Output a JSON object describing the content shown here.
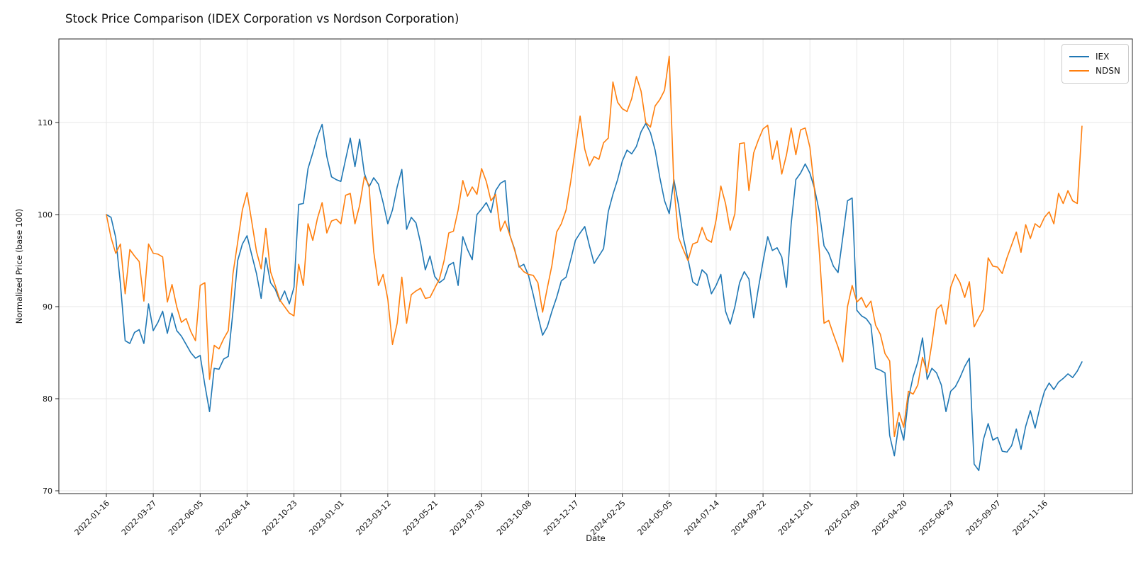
{
  "title": "Stock Price Comparison (IDEX Corporation vs Nordson Corporation)",
  "xlabel": "Date",
  "ylabel": "Normalized Price (base 100)",
  "colors": {
    "iex_line": "#1f77b4",
    "ndsn_line": "#ff7f0e",
    "grid": "#e7e7e7",
    "axis": "#262626",
    "text": "#111111"
  },
  "chart_data": {
    "type": "line",
    "title": "Stock Price Comparison (IDEX Corporation vs Nordson Corporation)",
    "xlabel": "Date",
    "ylabel": "Normalized Price (base 100)",
    "x_unit": "weeks since 2022-01-16 (weekly data points)",
    "x_tick_labels": [
      "2022-01-16",
      "2022-03-27",
      "2022-06-05",
      "2022-08-14",
      "2022-10-23",
      "2023-01-01",
      "2023-03-12",
      "2023-05-21",
      "2023-07-30",
      "2023-10-08",
      "2023-12-17",
      "2024-02-25",
      "2024-05-05",
      "2024-07-14",
      "2024-09-22",
      "2024-12-01",
      "2025-02-09",
      "2025-04-20",
      "2025-06-29",
      "2025-09-07",
      "2025-11-16"
    ],
    "x_tick_weeks": [
      0,
      10,
      20,
      30,
      40,
      50,
      60,
      70,
      80,
      90,
      100,
      110,
      120,
      130,
      140,
      150,
      160,
      170,
      180,
      190,
      200
    ],
    "y_ticks": [
      70,
      80,
      90,
      100,
      110
    ],
    "ylim": [
      69.6,
      119.5
    ],
    "grid": true,
    "legend_position": "upper right",
    "series": [
      {
        "name": "IEX",
        "color": "#1f77b4",
        "values": [
          100.0,
          99.7,
          97.5,
          92.5,
          86.3,
          86.0,
          87.2,
          87.5,
          86.0,
          90.3,
          87.4,
          88.3,
          89.5,
          87.1,
          89.3,
          87.4,
          86.8,
          85.9,
          85.0,
          84.4,
          84.7,
          81.5,
          78.6,
          83.3,
          83.2,
          84.3,
          84.6,
          89.5,
          95.0,
          96.8,
          97.7,
          95.6,
          93.6,
          90.9,
          95.3,
          92.6,
          91.9,
          90.6,
          91.7,
          90.3,
          92.1,
          101.1,
          101.2,
          105.0,
          106.7,
          108.5,
          109.8,
          106.3,
          104.1,
          103.8,
          103.6,
          106.0,
          108.3,
          105.2,
          108.2,
          104.5,
          103.0,
          104.0,
          103.3,
          101.3,
          99.0,
          100.5,
          103.0,
          104.9,
          98.4,
          99.7,
          99.1,
          96.9,
          94.0,
          95.5,
          93.3,
          92.6,
          93.0,
          94.5,
          94.8,
          92.3,
          97.6,
          96.2,
          95.1,
          100.0,
          100.6,
          101.3,
          100.2,
          102.6,
          103.4,
          103.7,
          97.8,
          96.3,
          94.3,
          94.6,
          93.4,
          91.3,
          89.0,
          86.9,
          87.8,
          89.5,
          91.0,
          92.8,
          93.2,
          95.1,
          97.2,
          98.0,
          98.7,
          96.6,
          94.7,
          95.5,
          96.3,
          100.3,
          102.2,
          103.8,
          105.8,
          107.0,
          106.6,
          107.4,
          109.0,
          109.9,
          108.9,
          107.0,
          104.0,
          101.5,
          100.1,
          103.8,
          101.0,
          97.5,
          95.2,
          92.7,
          92.3,
          94.0,
          93.5,
          91.4,
          92.3,
          93.5,
          89.5,
          88.1,
          90.0,
          92.6,
          93.8,
          93.0,
          88.8,
          92.0,
          94.9,
          97.6,
          96.1,
          96.4,
          95.4,
          92.1,
          99.0,
          103.8,
          104.5,
          105.5,
          104.5,
          102.8,
          100.3,
          96.6,
          95.8,
          94.4,
          93.7,
          97.5,
          101.5,
          101.8,
          89.6,
          89.0,
          88.7,
          88.0,
          83.3,
          83.1,
          82.8,
          76.0,
          73.8,
          77.4,
          75.5,
          80.0,
          82.4,
          84.0,
          86.6,
          82.1,
          83.3,
          82.8,
          81.5,
          78.6,
          80.8,
          81.3,
          82.3,
          83.5,
          84.4,
          72.9,
          72.2,
          75.6,
          77.3,
          75.5,
          75.8,
          74.3,
          74.2,
          74.9,
          76.7,
          74.5,
          77.0,
          78.7,
          76.8,
          79.0,
          80.8,
          81.7,
          81.0,
          81.8,
          82.2,
          82.7,
          82.3,
          83.0,
          84.0
        ]
      },
      {
        "name": "NDSN",
        "color": "#ff7f0e",
        "values": [
          100.0,
          97.5,
          95.8,
          96.8,
          91.4,
          96.2,
          95.5,
          94.9,
          90.6,
          96.8,
          95.8,
          95.7,
          95.4,
          90.5,
          92.4,
          90.0,
          88.3,
          88.7,
          87.3,
          86.3,
          92.3,
          92.6,
          82.1,
          85.8,
          85.4,
          86.5,
          87.4,
          93.6,
          97.0,
          100.5,
          102.4,
          99.2,
          96.0,
          94.1,
          98.5,
          93.8,
          92.3,
          90.7,
          90.0,
          89.3,
          89.0,
          94.6,
          92.3,
          99.0,
          97.2,
          99.6,
          101.3,
          98.0,
          99.3,
          99.5,
          99.0,
          102.1,
          102.3,
          99.0,
          101.0,
          104.1,
          103.2,
          96.0,
          92.3,
          93.5,
          90.8,
          85.9,
          88.2,
          93.2,
          88.2,
          91.3,
          91.7,
          92.0,
          90.9,
          91.0,
          92.0,
          93.0,
          95.0,
          98.0,
          98.2,
          100.5,
          103.7,
          102.0,
          103.0,
          102.2,
          105.0,
          103.6,
          101.5,
          102.2,
          98.2,
          99.3,
          97.8,
          96.2,
          94.4,
          93.8,
          93.5,
          93.4,
          92.6,
          89.4,
          92.0,
          94.5,
          98.1,
          99.0,
          100.5,
          103.6,
          107.2,
          110.7,
          107.1,
          105.3,
          106.3,
          106.0,
          107.8,
          108.3,
          114.4,
          112.2,
          111.5,
          111.2,
          112.6,
          115.0,
          113.4,
          110.0,
          109.5,
          111.8,
          112.5,
          113.5,
          117.2,
          103.0,
          97.5,
          96.2,
          95.0,
          96.8,
          97.0,
          98.6,
          97.3,
          97.0,
          99.4,
          103.1,
          101.2,
          98.3,
          100.1,
          107.7,
          107.8,
          102.6,
          106.7,
          108.1,
          109.3,
          109.7,
          106.0,
          108.0,
          104.4,
          106.5,
          109.4,
          106.5,
          109.2,
          109.4,
          107.3,
          102.6,
          95.9,
          88.2,
          88.5,
          87.0,
          85.6,
          84.0,
          90.0,
          92.3,
          90.5,
          91.0,
          89.9,
          90.6,
          88.0,
          87.0,
          84.9,
          84.1,
          75.9,
          78.5,
          76.9,
          80.8,
          80.5,
          81.5,
          84.5,
          82.8,
          86.0,
          89.7,
          90.2,
          88.1,
          92.1,
          93.5,
          92.6,
          91.0,
          92.7,
          87.8,
          88.8,
          89.7,
          95.3,
          94.4,
          94.3,
          93.6,
          95.3,
          96.7,
          98.1,
          95.9,
          98.9,
          97.4,
          99.0,
          98.6,
          99.7,
          100.3,
          99.0,
          102.3,
          101.2,
          102.6,
          101.5,
          101.2,
          109.6
        ]
      }
    ]
  }
}
